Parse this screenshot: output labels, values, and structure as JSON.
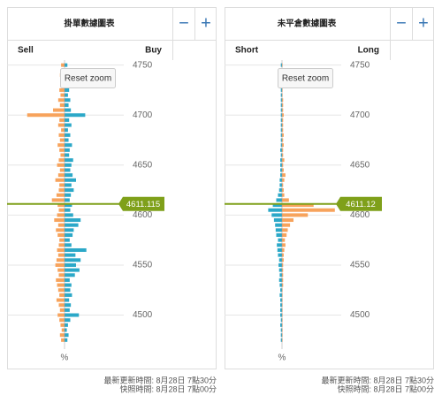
{
  "panels": [
    {
      "updated": "最新更新時間: 8月28日 7點30分",
      "snapshot": "快照時間: 8月28日 7點00分",
      "zoom_out": "−",
      "zoom_in": "+",
      "reset_zoom": "Reset zoom",
      "chart_data": {
        "type": "bar",
        "title": "掛單數據圖表",
        "x_label": "%",
        "prices": [
          4475,
          4480,
          4485,
          4490,
          4495,
          4500,
          4505,
          4510,
          4515,
          4520,
          4525,
          4530,
          4535,
          4540,
          4545,
          4550,
          4555,
          4560,
          4565,
          4570,
          4575,
          4580,
          4585,
          4590,
          4595,
          4600,
          4605,
          4610,
          4615,
          4620,
          4625,
          4630,
          4635,
          4640,
          4645,
          4650,
          4655,
          4660,
          4665,
          4670,
          4675,
          4680,
          4685,
          4690,
          4695,
          4700,
          4705,
          4710,
          4715,
          4720,
          4725,
          4730,
          4735,
          4740,
          4745,
          4750
        ],
        "series": [
          {
            "name": "Sell",
            "side": "left",
            "color": "#f7a35c",
            "values": [
              0.6,
              0.8,
              0.5,
              0.7,
              0.9,
              1.2,
              0.8,
              1.0,
              1.4,
              0.9,
              1.1,
              1.3,
              1.5,
              1.0,
              1.2,
              1.6,
              1.4,
              1.1,
              1.3,
              1.0,
              0.9,
              1.2,
              1.5,
              1.1,
              1.8,
              1.3,
              1.0,
              1.2,
              2.2,
              1.4,
              1.0,
              0.9,
              1.6,
              1.1,
              0.8,
              1.3,
              1.0,
              0.7,
              0.9,
              1.2,
              0.8,
              1.0,
              0.6,
              1.1,
              0.9,
              6.5,
              2.0,
              0.8,
              1.1,
              0.7,
              0.9,
              0.6,
              0.5,
              0.8,
              0.5,
              0.6
            ]
          },
          {
            "name": "Buy",
            "side": "right",
            "color": "#2ba8c8",
            "values": [
              0.5,
              0.7,
              0.4,
              0.6,
              1.0,
              2.5,
              0.9,
              1.1,
              0.8,
              1.3,
              1.0,
              1.2,
              0.9,
              1.8,
              2.6,
              2.0,
              2.8,
              1.9,
              3.8,
              1.2,
              0.9,
              1.4,
              1.6,
              2.4,
              2.8,
              1.5,
              1.0,
              1.3,
              0.9,
              1.1,
              1.6,
              1.2,
              2.0,
              1.4,
              1.0,
              1.2,
              1.5,
              0.8,
              0.9,
              1.3,
              0.7,
              1.0,
              0.6,
              1.2,
              0.8,
              3.6,
              1.1,
              0.7,
              1.0,
              0.6,
              0.8,
              0.5,
              0.4,
              0.6,
              0.4,
              0.5
            ]
          }
        ],
        "current": 4611.115,
        "current_color": "#7fa01a",
        "xlim": [
          -10,
          10
        ],
        "ylim": [
          4466,
          4755
        ],
        "yticks": [
          4500,
          4550,
          4600,
          4650,
          4700,
          4750
        ]
      }
    },
    {
      "updated": "最新更新時間: 8月28日 7點30分",
      "snapshot": "快照時間: 8月28日 7點00分",
      "zoom_out": "−",
      "zoom_in": "+",
      "reset_zoom": "Reset zoom",
      "chart_data": {
        "type": "bar",
        "title": "未平倉數據圖表",
        "x_label": "%",
        "prices": [
          4475,
          4480,
          4485,
          4490,
          4495,
          4500,
          4505,
          4510,
          4515,
          4520,
          4525,
          4530,
          4535,
          4540,
          4545,
          4550,
          4555,
          4560,
          4565,
          4570,
          4575,
          4580,
          4585,
          4590,
          4595,
          4600,
          4605,
          4610,
          4615,
          4620,
          4625,
          4630,
          4635,
          4640,
          4645,
          4650,
          4655,
          4660,
          4665,
          4670,
          4675,
          4680,
          4685,
          4690,
          4695,
          4700,
          4705,
          4710,
          4715,
          4720,
          4725,
          4730,
          4735,
          4740,
          4745,
          4750
        ],
        "series": [
          {
            "name": "Short",
            "side": "left",
            "color": "#2ba8c8",
            "values": [
              0.2,
              0.2,
              0.2,
              0.3,
              0.2,
              0.3,
              0.3,
              0.3,
              0.3,
              0.4,
              0.3,
              0.4,
              0.5,
              0.4,
              0.5,
              0.6,
              0.5,
              0.7,
              0.8,
              0.9,
              0.7,
              1.0,
              1.1,
              1.2,
              1.4,
              1.8,
              2.4,
              1.6,
              1.0,
              0.7,
              0.5,
              0.4,
              0.4,
              0.3,
              0.3,
              0.3,
              0.3,
              0.2,
              0.3,
              0.2,
              0.2,
              0.2,
              0.2,
              0.2,
              0.2,
              0.2,
              0.2,
              0.2,
              0.2,
              0.2,
              0.2,
              0.2,
              0.2,
              0.2,
              0.2,
              0.2
            ]
          },
          {
            "name": "Long",
            "side": "right",
            "color": "#f7a35c",
            "values": [
              0.1,
              0.1,
              0.1,
              0.1,
              0.1,
              0.1,
              0.1,
              0.1,
              0.1,
              0.1,
              0.1,
              0.2,
              0.2,
              0.2,
              0.2,
              0.2,
              0.3,
              0.3,
              0.4,
              0.6,
              0.5,
              0.8,
              1.0,
              1.4,
              2.0,
              4.5,
              9.2,
              5.5,
              1.2,
              0.4,
              0.3,
              0.2,
              0.4,
              0.6,
              0.3,
              0.2,
              0.4,
              0.2,
              0.2,
              0.3,
              0.2,
              0.3,
              0.2,
              0.2,
              0.2,
              0.3,
              0.2,
              0.2,
              0.2,
              0.1,
              0.1,
              0.1,
              0.1,
              0.1,
              0.1,
              0.1
            ]
          }
        ],
        "current": 4611.12,
        "current_color": "#7fa01a",
        "xlim": [
          -10,
          10
        ],
        "ylim": [
          4466,
          4755
        ],
        "yticks": [
          4500,
          4550,
          4600,
          4650,
          4700,
          4750
        ]
      }
    }
  ]
}
